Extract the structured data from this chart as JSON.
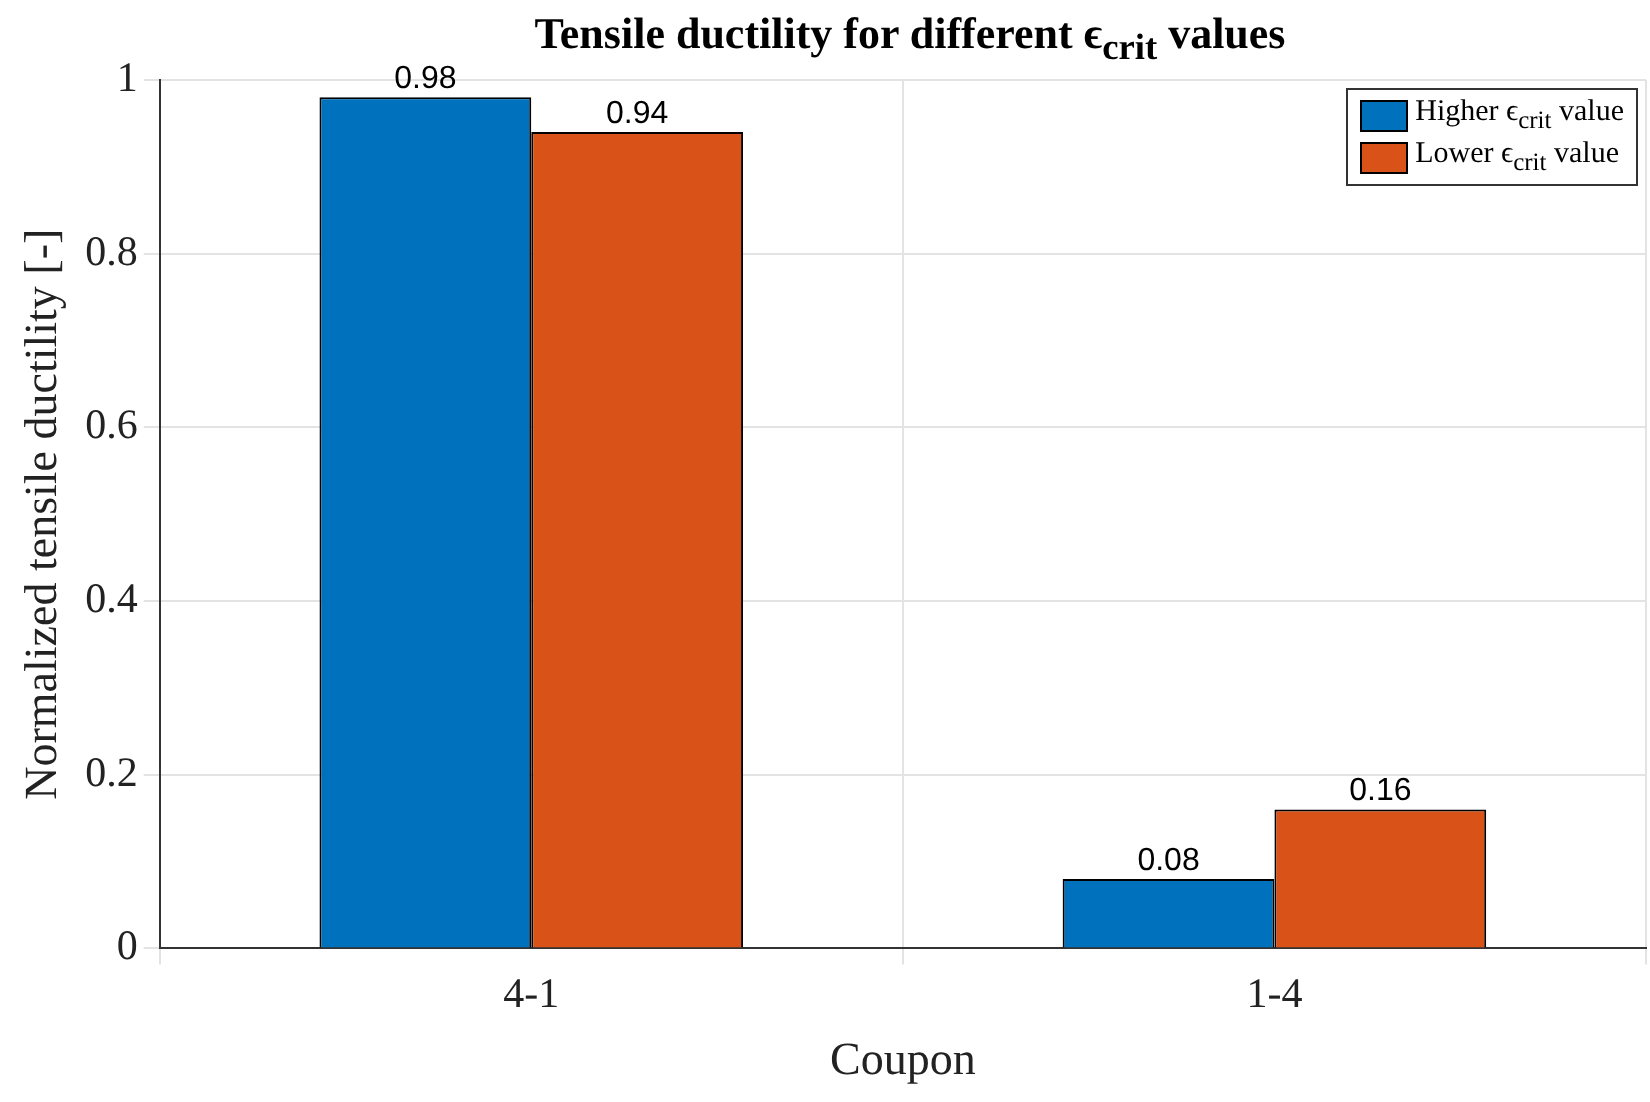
{
  "chart_data": {
    "type": "bar",
    "title": "Tensile ductility for different ϵ$_{crit}$ values",
    "xlabel": "Coupon",
    "ylabel": "Normalized tensile ductility [-]",
    "categories": [
      "4-1",
      "1-4"
    ],
    "series": [
      {
        "name": "Higher ϵ$_{crit}$ value",
        "color": "#0072bd",
        "values": [
          0.98,
          0.08
        ]
      },
      {
        "name": "Lower ϵ$_{crit}$ value",
        "color": "#d95319",
        "values": [
          0.94,
          0.16
        ]
      }
    ],
    "ylim": [
      0,
      1
    ],
    "yticks": [
      0,
      0.2,
      0.4,
      0.6,
      0.8,
      1
    ],
    "grid": true,
    "legend": "top right",
    "data_labels": true
  }
}
